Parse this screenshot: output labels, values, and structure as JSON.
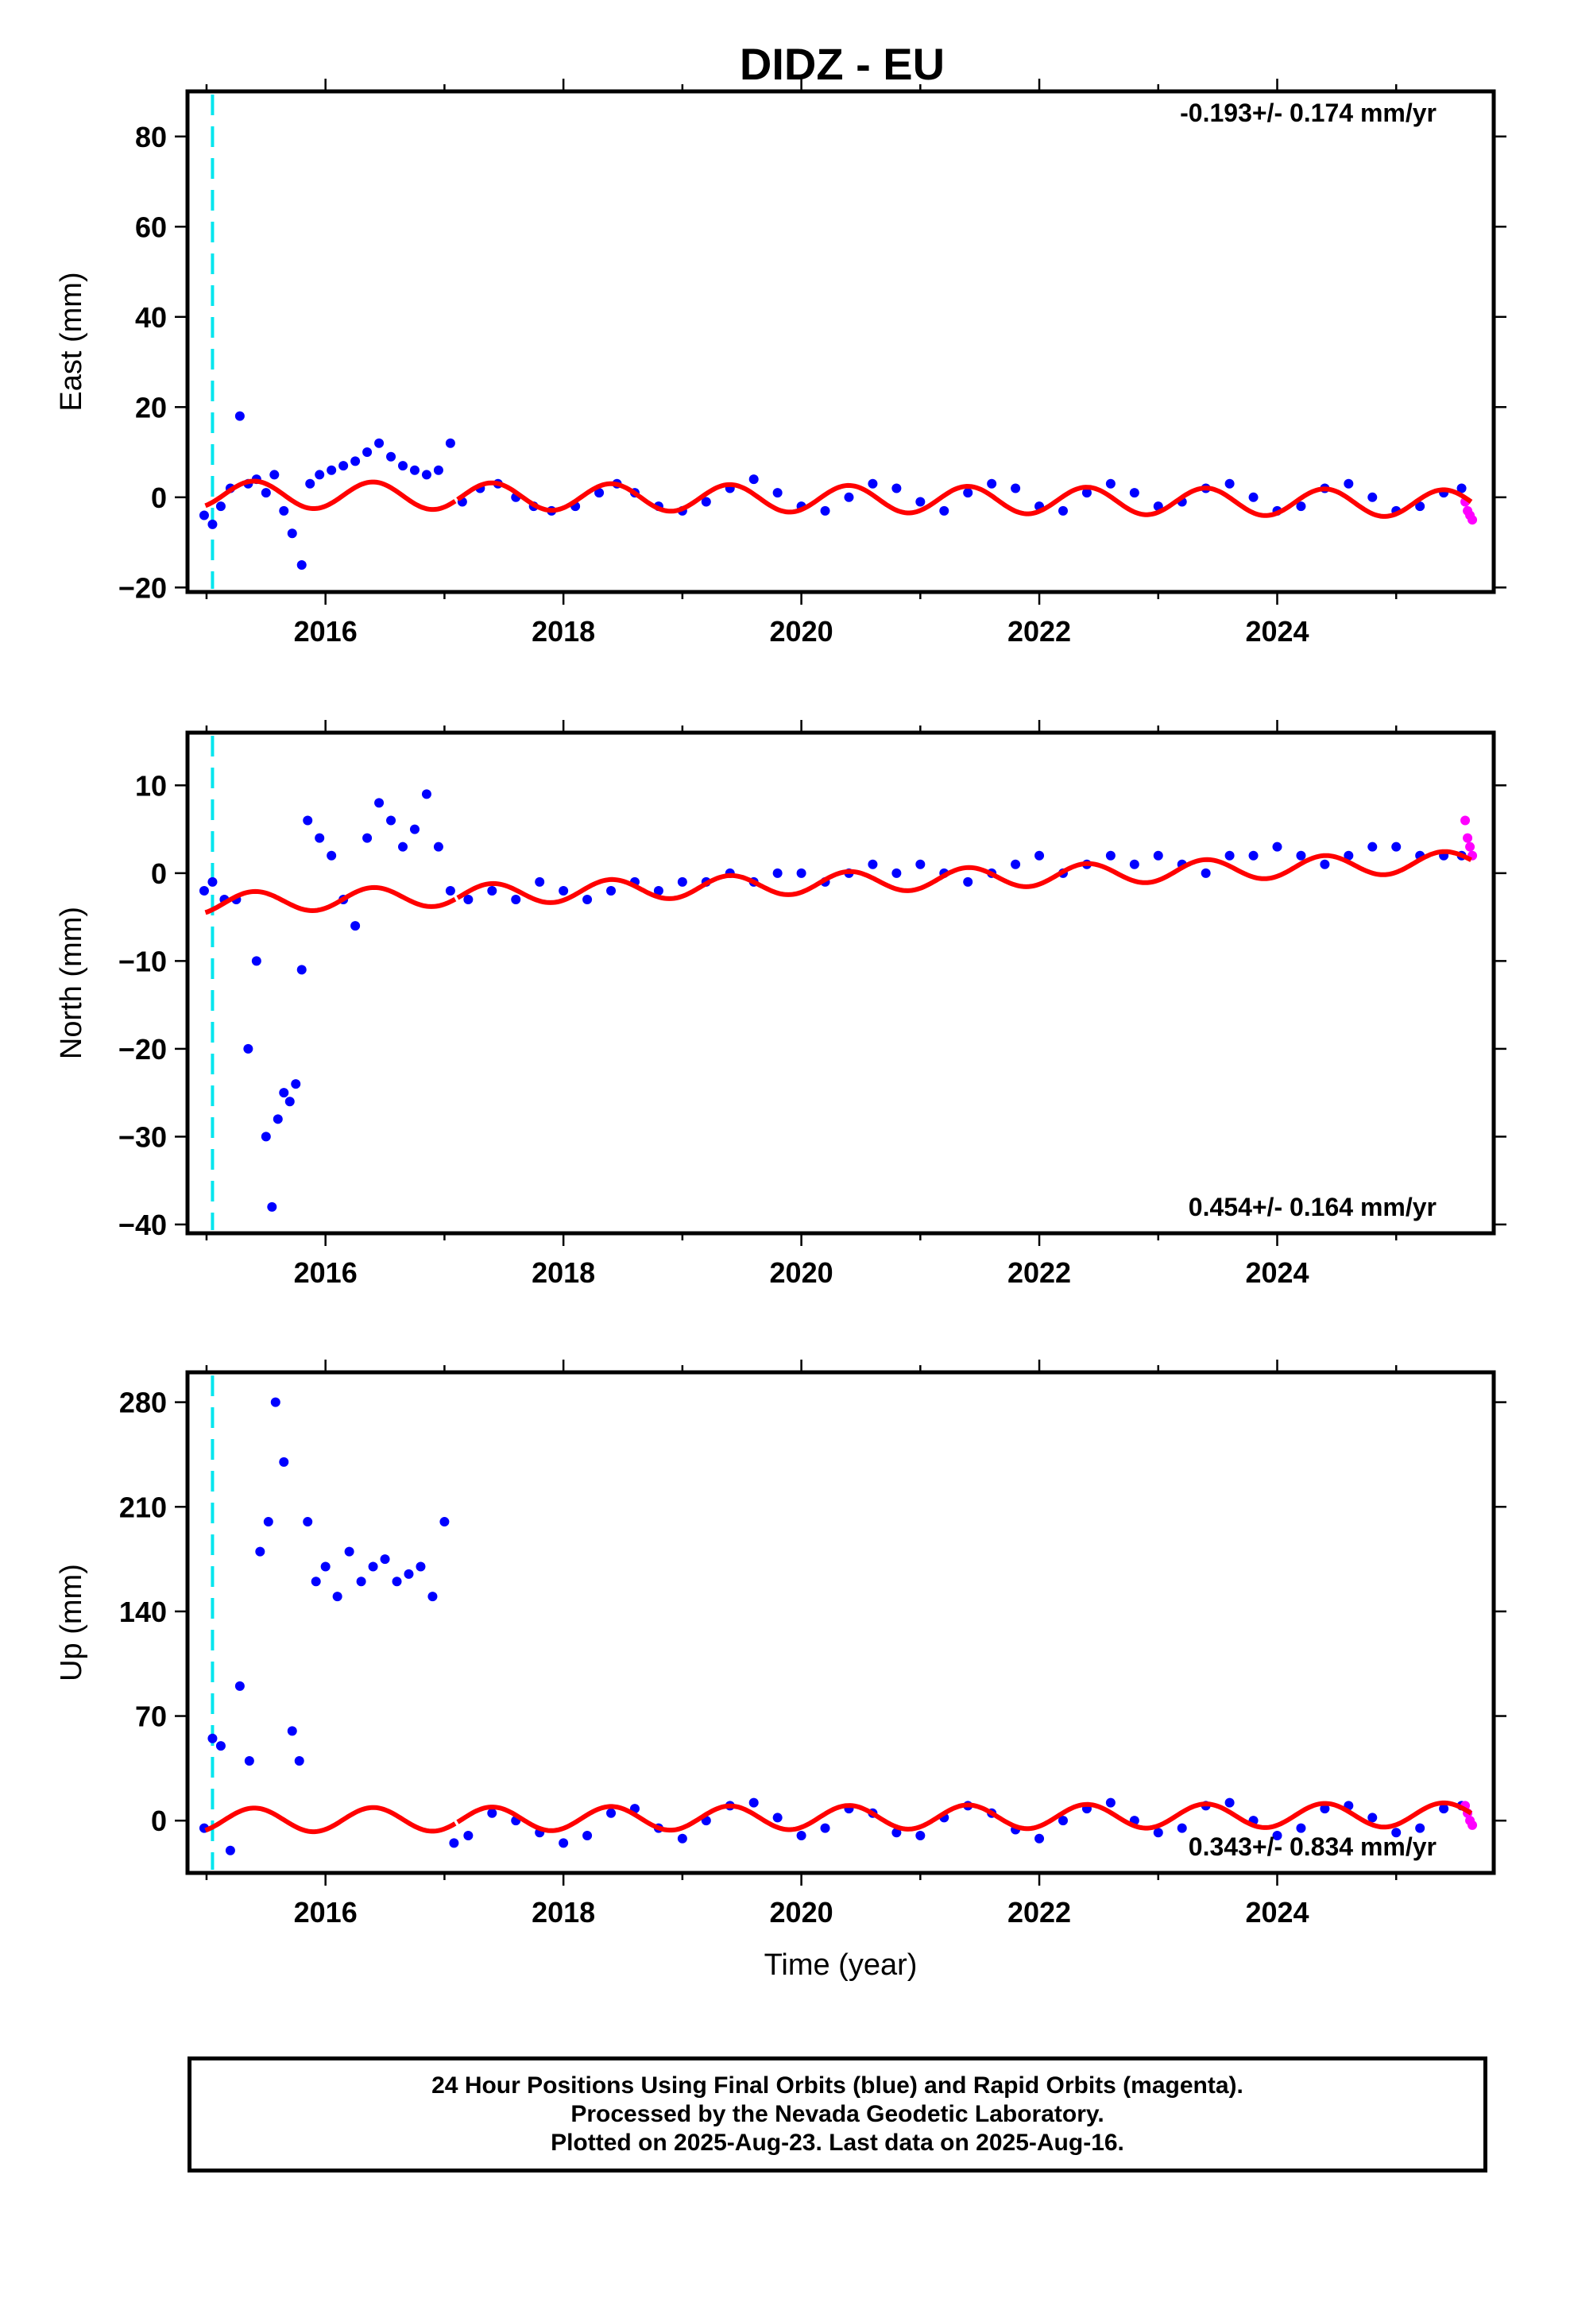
{
  "title": "DIDZ - EU",
  "chart_data": [
    {
      "type": "scatter",
      "panel": "East",
      "ylabel": "East (mm)",
      "xlabel": "",
      "xlim": [
        2014.84,
        2025.82
      ],
      "ylim": [
        -21,
        90
      ],
      "xticks": [
        2016,
        2018,
        2020,
        2022,
        2024
      ],
      "xtick_labels": [
        "2016",
        "2018",
        "2020",
        "2022",
        "2024"
      ],
      "yticks": [
        -20,
        0,
        20,
        40,
        60,
        80
      ],
      "ytick_labels": [
        "−20",
        "0",
        "20",
        "40",
        "60",
        "80"
      ],
      "rate_text": "-0.193+/- 0.174 mm/yr",
      "rate_position": "top-right",
      "vertical_marker_year": 2015.05,
      "series": [
        {
          "name": "Final Orbits",
          "color": "#0000ff",
          "x": [
            2014.98,
            2015.05,
            2015.12,
            2015.2,
            2015.28,
            2015.35,
            2015.42,
            2015.5,
            2015.57,
            2015.65,
            2015.72,
            2015.8,
            2015.87,
            2015.95,
            2016.05,
            2016.15,
            2016.25,
            2016.35,
            2016.45,
            2016.55,
            2016.65,
            2016.75,
            2016.85,
            2016.95,
            2017.05,
            2017.15,
            2017.3,
            2017.45,
            2017.6,
            2017.75,
            2017.9,
            2018.1,
            2018.3,
            2018.45,
            2018.6,
            2018.8,
            2019.0,
            2019.2,
            2019.4,
            2019.6,
            2019.8,
            2020.0,
            2020.2,
            2020.4,
            2020.6,
            2020.8,
            2021.0,
            2021.2,
            2021.4,
            2021.6,
            2021.8,
            2022.0,
            2022.2,
            2022.4,
            2022.6,
            2022.8,
            2023.0,
            2023.2,
            2023.4,
            2023.6,
            2023.8,
            2024.0,
            2024.2,
            2024.4,
            2024.6,
            2024.8,
            2025.0,
            2025.2,
            2025.4,
            2025.55
          ],
          "y": [
            -4,
            -6,
            -2,
            2,
            18,
            3,
            4,
            1,
            5,
            -3,
            -8,
            -15,
            3,
            5,
            6,
            7,
            8,
            10,
            12,
            9,
            7,
            6,
            5,
            6,
            12,
            -1,
            2,
            3,
            0,
            -2,
            -3,
            -2,
            1,
            3,
            1,
            -2,
            -3,
            -1,
            2,
            4,
            1,
            -2,
            -3,
            0,
            3,
            2,
            -1,
            -3,
            1,
            3,
            2,
            -2,
            -3,
            1,
            3,
            1,
            -2,
            -1,
            2,
            3,
            0,
            -3,
            -2,
            2,
            3,
            0,
            -3,
            -2,
            1,
            2
          ]
        },
        {
          "name": "Rapid Orbits",
          "color": "#ff00ff",
          "x": [
            2025.58,
            2025.6,
            2025.62,
            2025.64
          ],
          "y": [
            -1,
            -3,
            -4,
            -5
          ]
        },
        {
          "name": "Model",
          "color": "#ff0000",
          "type": "line",
          "annual_amplitude": 3,
          "mean": -0.3,
          "rate": -0.193,
          "first_segment_end": 2017.1
        }
      ]
    },
    {
      "type": "scatter",
      "panel": "North",
      "ylabel": "North (mm)",
      "xlabel": "",
      "xlim": [
        2014.84,
        2025.82
      ],
      "ylim": [
        -41,
        16
      ],
      "xticks": [
        2016,
        2018,
        2020,
        2022,
        2024
      ],
      "xtick_labels": [
        "2016",
        "2018",
        "2020",
        "2022",
        "2024"
      ],
      "yticks": [
        -40,
        -30,
        -20,
        -10,
        0,
        10
      ],
      "ytick_labels": [
        "−40",
        "−30",
        "−20",
        "−10",
        "0",
        "10"
      ],
      "rate_text": "0.454+/- 0.164 mm/yr",
      "rate_position": "bottom-right",
      "vertical_marker_year": 2015.05,
      "series": [
        {
          "name": "Final Orbits",
          "color": "#0000ff",
          "x": [
            2014.98,
            2015.05,
            2015.15,
            2015.25,
            2015.35,
            2015.42,
            2015.5,
            2015.55,
            2015.6,
            2015.65,
            2015.7,
            2015.75,
            2015.8,
            2015.85,
            2015.95,
            2016.05,
            2016.15,
            2016.25,
            2016.35,
            2016.45,
            2016.55,
            2016.65,
            2016.75,
            2016.85,
            2016.95,
            2017.05,
            2017.2,
            2017.4,
            2017.6,
            2017.8,
            2018.0,
            2018.2,
            2018.4,
            2018.6,
            2018.8,
            2019.0,
            2019.2,
            2019.4,
            2019.6,
            2019.8,
            2020.0,
            2020.2,
            2020.4,
            2020.6,
            2020.8,
            2021.0,
            2021.2,
            2021.4,
            2021.6,
            2021.8,
            2022.0,
            2022.2,
            2022.4,
            2022.6,
            2022.8,
            2023.0,
            2023.2,
            2023.4,
            2023.6,
            2023.8,
            2024.0,
            2024.2,
            2024.4,
            2024.6,
            2024.8,
            2025.0,
            2025.2,
            2025.4,
            2025.55
          ],
          "y": [
            -2,
            -1,
            -3,
            -3,
            -20,
            -10,
            -30,
            -38,
            -28,
            -25,
            -26,
            -24,
            -11,
            6,
            4,
            2,
            -3,
            -6,
            4,
            8,
            6,
            3,
            5,
            9,
            3,
            -2,
            -3,
            -2,
            -3,
            -1,
            -2,
            -3,
            -2,
            -1,
            -2,
            -1,
            -1,
            0,
            -1,
            0,
            0,
            -1,
            0,
            1,
            0,
            1,
            0,
            -1,
            0,
            1,
            2,
            0,
            1,
            2,
            1,
            2,
            1,
            0,
            2,
            2,
            3,
            2,
            1,
            2,
            3,
            3,
            2,
            2,
            2
          ]
        },
        {
          "name": "Rapid Orbits",
          "color": "#ff00ff",
          "x": [
            2025.58,
            2025.6,
            2025.62,
            2025.64
          ],
          "y": [
            6,
            4,
            3,
            2
          ]
        },
        {
          "name": "Model",
          "color": "#ff0000",
          "type": "line",
          "annual_amplitude": 1.2,
          "mean": -1.2,
          "rate": 0.454,
          "first_segment_end": 2017.1
        }
      ]
    },
    {
      "type": "scatter",
      "panel": "Up",
      "ylabel": "Up (mm)",
      "xlabel": "Time (year)",
      "xlim": [
        2014.84,
        2025.82
      ],
      "ylim": [
        -35,
        300
      ],
      "xticks": [
        2016,
        2018,
        2020,
        2022,
        2024
      ],
      "xtick_labels": [
        "2016",
        "2018",
        "2020",
        "2022",
        "2024"
      ],
      "yticks": [
        0,
        70,
        140,
        210,
        280
      ],
      "ytick_labels": [
        "0",
        "70",
        "140",
        "210",
        "280"
      ],
      "rate_text": "0.343+/- 0.834 mm/yr",
      "rate_position": "bottom-right",
      "vertical_marker_year": 2015.05,
      "series": [
        {
          "name": "Final Orbits",
          "color": "#0000ff",
          "x": [
            2014.98,
            2015.05,
            2015.12,
            2015.2,
            2015.28,
            2015.36,
            2015.45,
            2015.52,
            2015.58,
            2015.65,
            2015.72,
            2015.78,
            2015.85,
            2015.92,
            2016.0,
            2016.1,
            2016.2,
            2016.3,
            2016.4,
            2016.5,
            2016.6,
            2016.7,
            2016.8,
            2016.9,
            2017.0,
            2017.08,
            2017.2,
            2017.4,
            2017.6,
            2017.8,
            2018.0,
            2018.2,
            2018.4,
            2018.6,
            2018.8,
            2019.0,
            2019.2,
            2019.4,
            2019.6,
            2019.8,
            2020.0,
            2020.2,
            2020.4,
            2020.6,
            2020.8,
            2021.0,
            2021.2,
            2021.4,
            2021.6,
            2021.8,
            2022.0,
            2022.2,
            2022.4,
            2022.6,
            2022.8,
            2023.0,
            2023.2,
            2023.4,
            2023.6,
            2023.8,
            2024.0,
            2024.2,
            2024.4,
            2024.6,
            2024.8,
            2025.0,
            2025.2,
            2025.4,
            2025.55
          ],
          "y": [
            -5,
            55,
            50,
            -20,
            90,
            40,
            180,
            200,
            280,
            240,
            60,
            40,
            200,
            160,
            170,
            150,
            180,
            160,
            170,
            175,
            160,
            165,
            170,
            150,
            200,
            -15,
            -10,
            5,
            0,
            -8,
            -15,
            -10,
            5,
            8,
            -5,
            -12,
            0,
            10,
            12,
            2,
            -10,
            -5,
            8,
            5,
            -8,
            -10,
            2,
            10,
            5,
            -6,
            -12,
            0,
            8,
            12,
            0,
            -8,
            -5,
            10,
            12,
            0,
            -10,
            -5,
            8,
            10,
            2,
            -8,
            -5,
            8,
            10
          ]
        },
        {
          "name": "Rapid Orbits",
          "color": "#ff00ff",
          "x": [
            2025.58,
            2025.6,
            2025.62,
            2025.64
          ],
          "y": [
            10,
            5,
            0,
            -3
          ]
        },
        {
          "name": "Model",
          "color": "#ff0000",
          "type": "line",
          "annual_amplitude": 8,
          "mean": 2,
          "rate": 0.343,
          "first_segment_end": 2017.1
        }
      ]
    }
  ],
  "footer": {
    "line1": "24 Hour Positions Using Final Orbits (blue) and Rapid Orbits (magenta).",
    "line2": "Processed by the Nevada Geodetic Laboratory.",
    "line3": "Plotted on 2025-Aug-23. Last data on 2025-Aug-16."
  }
}
